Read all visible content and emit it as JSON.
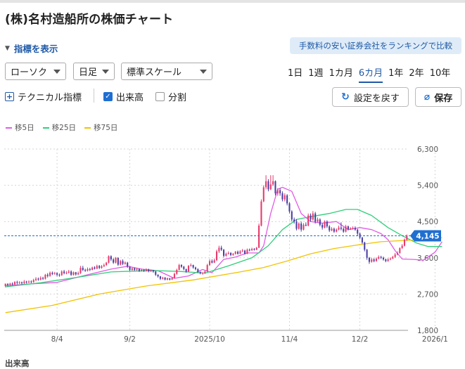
{
  "page": {
    "title": "(株)名村造船所の株価チャート",
    "indicator_toggle": "指標を表示",
    "ranking_link": "手数料の安い証券会社をランキングで比較"
  },
  "controls": {
    "chart_type": "ローソク",
    "interval": "日足",
    "scale": "標準スケール",
    "periods": [
      {
        "label": "1日",
        "active": false
      },
      {
        "label": "1週",
        "active": false
      },
      {
        "label": "1カ月",
        "active": false
      },
      {
        "label": "6カ月",
        "active": true
      },
      {
        "label": "1年",
        "active": false
      },
      {
        "label": "2年",
        "active": false
      },
      {
        "label": "10年",
        "active": false
      }
    ],
    "technical_label": "テクニカル指標",
    "volume_label": "出来高",
    "volume_checked": true,
    "split_label": "分割",
    "split_checked": false,
    "reset_label": "設定を戻す",
    "save_label": "保存"
  },
  "legend": [
    {
      "label": "移5日",
      "color": "#e05ce6"
    },
    {
      "label": "移25日",
      "color": "#2fcf7a"
    },
    {
      "label": "移75日",
      "color": "#f2c200"
    }
  ],
  "volume_title": "出来高",
  "chart_data": {
    "type": "candlestick",
    "ylim": [
      1800,
      6300
    ],
    "y_ticks": [
      {
        "value": 6300,
        "label": "6,300"
      },
      {
        "value": 5400,
        "label": "5,400"
      },
      {
        "value": 4500,
        "label": "4,500"
      },
      {
        "value": 3600,
        "label": "3,600"
      },
      {
        "value": 2700,
        "label": "2,700"
      },
      {
        "value": 1800,
        "label": "1,800"
      }
    ],
    "x_ticks": [
      {
        "index": 22,
        "label": "8/4"
      },
      {
        "index": 53,
        "label": "9/2"
      },
      {
        "index": 87,
        "label": "2025/10"
      },
      {
        "index": 121,
        "label": "11/4"
      },
      {
        "index": 151,
        "label": "12/2"
      },
      {
        "index": 183,
        "label": "2026/1"
      }
    ],
    "current_price": 4145,
    "current_label": "4,145",
    "colors": {
      "up": "#e8396b",
      "down": "#4a3fa3",
      "current": "#1f6fd1"
    },
    "series": [
      {
        "name": "移5日",
        "color": "#e05ce6",
        "points": [
          [
            0,
            2910
          ],
          [
            10,
            2950
          ],
          [
            22,
            2990
          ],
          [
            35,
            3180
          ],
          [
            45,
            3320
          ],
          [
            52,
            3390
          ],
          [
            58,
            3320
          ],
          [
            65,
            3280
          ],
          [
            72,
            3090
          ],
          [
            78,
            3150
          ],
          [
            84,
            3310
          ],
          [
            88,
            3230
          ],
          [
            93,
            3560
          ],
          [
            98,
            3620
          ],
          [
            103,
            3720
          ],
          [
            108,
            3720
          ],
          [
            110,
            3900
          ],
          [
            113,
            4700
          ],
          [
            116,
            5300
          ],
          [
            118,
            5350
          ],
          [
            122,
            5250
          ],
          [
            126,
            4700
          ],
          [
            130,
            4500
          ],
          [
            135,
            4460
          ],
          [
            141,
            4500
          ],
          [
            146,
            4300
          ],
          [
            151,
            4350
          ],
          [
            156,
            4300
          ],
          [
            160,
            4200
          ],
          [
            163,
            4050
          ],
          [
            166,
            3780
          ],
          [
            169,
            3570
          ],
          [
            174,
            3560
          ],
          [
            178,
            3540
          ],
          [
            183,
            3740
          ],
          [
            186,
            4000
          ]
        ]
      },
      {
        "name": "移25日",
        "color": "#2fcf7a",
        "points": [
          [
            0,
            2880
          ],
          [
            15,
            2980
          ],
          [
            30,
            3110
          ],
          [
            45,
            3250
          ],
          [
            55,
            3270
          ],
          [
            65,
            3280
          ],
          [
            75,
            3260
          ],
          [
            85,
            3220
          ],
          [
            95,
            3400
          ],
          [
            105,
            3600
          ],
          [
            112,
            3900
          ],
          [
            118,
            4300
          ],
          [
            124,
            4550
          ],
          [
            130,
            4620
          ],
          [
            138,
            4700
          ],
          [
            145,
            4800
          ],
          [
            150,
            4800
          ],
          [
            156,
            4650
          ],
          [
            163,
            4350
          ],
          [
            169,
            4150
          ],
          [
            175,
            3970
          ],
          [
            180,
            3880
          ],
          [
            186,
            3880
          ]
        ]
      },
      {
        "name": "移75日",
        "color": "#f2c200",
        "points": [
          [
            0,
            2240
          ],
          [
            20,
            2420
          ],
          [
            40,
            2700
          ],
          [
            60,
            2900
          ],
          [
            80,
            3050
          ],
          [
            100,
            3250
          ],
          [
            110,
            3360
          ],
          [
            120,
            3520
          ],
          [
            130,
            3700
          ],
          [
            140,
            3830
          ],
          [
            150,
            3920
          ],
          [
            160,
            4000
          ],
          [
            170,
            4030
          ],
          [
            180,
            4060
          ],
          [
            186,
            4100
          ]
        ]
      }
    ],
    "candles": [
      [
        2900,
        2960,
        2870,
        2950
      ],
      [
        2950,
        2930,
        2890,
        2970
      ],
      [
        2930,
        2960,
        2900,
        2980
      ],
      [
        2960,
        2940,
        2910,
        2990
      ],
      [
        2940,
        3000,
        2920,
        3020
      ],
      [
        3000,
        2980,
        2940,
        3030
      ],
      [
        2980,
        2990,
        2950,
        3020
      ],
      [
        2990,
        2970,
        2940,
        3010
      ],
      [
        2970,
        3010,
        2950,
        3050
      ],
      [
        3010,
        2990,
        2960,
        3030
      ],
      [
        2990,
        3010,
        2970,
        3040
      ],
      [
        3010,
        3000,
        2970,
        3040
      ],
      [
        3000,
        3050,
        2980,
        3080
      ],
      [
        3050,
        3080,
        3020,
        3120
      ],
      [
        3080,
        3060,
        3030,
        3110
      ],
      [
        3060,
        3100,
        3040,
        3140
      ],
      [
        3100,
        3080,
        3050,
        3130
      ],
      [
        3080,
        3180,
        3060,
        3200
      ],
      [
        3180,
        3150,
        3110,
        3220
      ],
      [
        3150,
        3230,
        3130,
        3260
      ],
      [
        3230,
        3200,
        3170,
        3260
      ],
      [
        3200,
        3220,
        3180,
        3250
      ],
      [
        3220,
        3180,
        3140,
        3240
      ],
      [
        3180,
        3170,
        3130,
        3210
      ],
      [
        3170,
        3260,
        3150,
        3290
      ],
      [
        3260,
        3220,
        3190,
        3300
      ],
      [
        3220,
        3230,
        3190,
        3270
      ],
      [
        3230,
        3260,
        3210,
        3300
      ],
      [
        3260,
        3180,
        3150,
        3290
      ],
      [
        3180,
        3240,
        3160,
        3260
      ],
      [
        3240,
        3190,
        3160,
        3250
      ],
      [
        3190,
        3220,
        3170,
        3260
      ],
      [
        3220,
        3350,
        3200,
        3400
      ],
      [
        3350,
        3300,
        3270,
        3400
      ],
      [
        3300,
        3280,
        3250,
        3330
      ],
      [
        3280,
        3320,
        3260,
        3360
      ],
      [
        3320,
        3300,
        3270,
        3350
      ],
      [
        3300,
        3360,
        3290,
        3380
      ],
      [
        3360,
        3330,
        3310,
        3390
      ],
      [
        3330,
        3400,
        3320,
        3430
      ],
      [
        3400,
        3350,
        3320,
        3420
      ],
      [
        3350,
        3390,
        3330,
        3420
      ],
      [
        3390,
        3420,
        3370,
        3460
      ],
      [
        3420,
        3480,
        3400,
        3500
      ],
      [
        3480,
        3640,
        3460,
        3660
      ],
      [
        3640,
        3560,
        3520,
        3660
      ],
      [
        3560,
        3480,
        3450,
        3590
      ],
      [
        3480,
        3600,
        3460,
        3620
      ],
      [
        3600,
        3430,
        3400,
        3610
      ],
      [
        3430,
        3520,
        3410,
        3550
      ],
      [
        3520,
        3450,
        3420,
        3560
      ],
      [
        3450,
        3480,
        3430,
        3510
      ],
      [
        3480,
        3380,
        3350,
        3500
      ],
      [
        3380,
        3300,
        3270,
        3390
      ],
      [
        3300,
        3340,
        3280,
        3360
      ],
      [
        3340,
        3300,
        3270,
        3360
      ],
      [
        3300,
        3320,
        3280,
        3350
      ],
      [
        3320,
        3280,
        3250,
        3340
      ],
      [
        3280,
        3300,
        3260,
        3330
      ],
      [
        3300,
        3280,
        3250,
        3320
      ],
      [
        3280,
        3310,
        3260,
        3340
      ],
      [
        3310,
        3270,
        3240,
        3330
      ],
      [
        3270,
        3290,
        3250,
        3310
      ],
      [
        3290,
        3260,
        3230,
        3300
      ],
      [
        3260,
        3180,
        3150,
        3270
      ],
      [
        3180,
        3140,
        3110,
        3190
      ],
      [
        3140,
        3080,
        3050,
        3150
      ],
      [
        3080,
        3110,
        3060,
        3130
      ],
      [
        3110,
        3060,
        3040,
        3120
      ],
      [
        3060,
        3090,
        3040,
        3110
      ],
      [
        3090,
        3060,
        3040,
        3100
      ],
      [
        3060,
        3100,
        3050,
        3120
      ],
      [
        3100,
        3200,
        3090,
        3230
      ],
      [
        3200,
        3300,
        3180,
        3330
      ],
      [
        3300,
        3420,
        3290,
        3450
      ],
      [
        3420,
        3380,
        3350,
        3440
      ],
      [
        3380,
        3320,
        3290,
        3400
      ],
      [
        3320,
        3260,
        3230,
        3330
      ],
      [
        3260,
        3400,
        3250,
        3420
      ],
      [
        3400,
        3420,
        3380,
        3460
      ],
      [
        3420,
        3360,
        3330,
        3430
      ],
      [
        3360,
        3320,
        3290,
        3380
      ],
      [
        3320,
        3250,
        3220,
        3340
      ],
      [
        3250,
        3220,
        3190,
        3260
      ],
      [
        3220,
        3230,
        3180,
        3240
      ],
      [
        3230,
        3260,
        3200,
        3280
      ],
      [
        3260,
        3420,
        3250,
        3450
      ],
      [
        3420,
        3520,
        3400,
        3560
      ],
      [
        3520,
        3480,
        3460,
        3560
      ],
      [
        3480,
        3540,
        3470,
        3580
      ],
      [
        3540,
        3760,
        3520,
        3800
      ],
      [
        3760,
        3850,
        3720,
        3900
      ],
      [
        3850,
        3800,
        3770,
        3900
      ],
      [
        3800,
        3650,
        3610,
        3820
      ],
      [
        3650,
        3700,
        3630,
        3730
      ],
      [
        3700,
        3720,
        3680,
        3760
      ],
      [
        3720,
        3670,
        3640,
        3740
      ],
      [
        3670,
        3700,
        3650,
        3720
      ],
      [
        3700,
        3750,
        3680,
        3770
      ],
      [
        3750,
        3700,
        3680,
        3780
      ],
      [
        3700,
        3760,
        3690,
        3790
      ],
      [
        3760,
        3780,
        3740,
        3820
      ],
      [
        3780,
        3700,
        3680,
        3800
      ],
      [
        3700,
        3800,
        3690,
        3830
      ],
      [
        3800,
        3790,
        3760,
        3830
      ],
      [
        3790,
        3820,
        3770,
        3850
      ],
      [
        3820,
        3800,
        3780,
        3840
      ],
      [
        3800,
        3850,
        3790,
        3870
      ],
      [
        3850,
        4400,
        3840,
        4450
      ],
      [
        4400,
        5000,
        4380,
        5050
      ],
      [
        5000,
        5350,
        4980,
        5400
      ],
      [
        5350,
        5500,
        5300,
        5650
      ],
      [
        5500,
        5300,
        5250,
        5550
      ],
      [
        5300,
        5420,
        5280,
        5650
      ],
      [
        5420,
        5500,
        5380,
        5650
      ],
      [
        5500,
        5200,
        5150,
        5520
      ],
      [
        5200,
        5280,
        5140,
        5330
      ],
      [
        5280,
        5200,
        5140,
        5330
      ],
      [
        5200,
        5050,
        5000,
        5250
      ],
      [
        5050,
        5150,
        5000,
        5200
      ],
      [
        5150,
        4950,
        4900,
        5180
      ],
      [
        4950,
        4750,
        4700,
        4980
      ],
      [
        4750,
        4550,
        4500,
        4780
      ],
      [
        4550,
        4500,
        4450,
        4600
      ],
      [
        4500,
        4320,
        4280,
        4560
      ],
      [
        4320,
        4450,
        4300,
        4480
      ],
      [
        4450,
        4300,
        4250,
        4500
      ],
      [
        4300,
        4420,
        4280,
        4460
      ],
      [
        4420,
        4400,
        4380,
        4480
      ],
      [
        4400,
        4650,
        4380,
        4700
      ],
      [
        4650,
        4550,
        4500,
        4700
      ],
      [
        4550,
        4700,
        4520,
        4760
      ],
      [
        4700,
        4500,
        4450,
        4740
      ],
      [
        4500,
        4550,
        4470,
        4600
      ],
      [
        4550,
        4420,
        4380,
        4580
      ],
      [
        4420,
        4350,
        4300,
        4460
      ],
      [
        4350,
        4500,
        4330,
        4530
      ],
      [
        4500,
        4380,
        4340,
        4530
      ],
      [
        4380,
        4280,
        4240,
        4410
      ],
      [
        4280,
        4320,
        4260,
        4360
      ],
      [
        4320,
        4250,
        4220,
        4350
      ],
      [
        4250,
        4300,
        4230,
        4330
      ],
      [
        4300,
        4350,
        4280,
        4400
      ],
      [
        4350,
        4320,
        4280,
        4480
      ],
      [
        4320,
        4250,
        4220,
        4360
      ],
      [
        4250,
        4380,
        4230,
        4420
      ],
      [
        4380,
        4310,
        4280,
        4400
      ],
      [
        4310,
        4330,
        4290,
        4360
      ],
      [
        4330,
        4340,
        4300,
        4380
      ],
      [
        4340,
        4300,
        4270,
        4380
      ],
      [
        4300,
        4200,
        4150,
        4320
      ],
      [
        4200,
        4100,
        4060,
        4230
      ],
      [
        4100,
        3980,
        3940,
        4120
      ],
      [
        3980,
        3800,
        3760,
        4000
      ],
      [
        3800,
        3600,
        3550,
        3820
      ],
      [
        3600,
        3500,
        3450,
        3620
      ],
      [
        3500,
        3560,
        3480,
        3600
      ],
      [
        3560,
        3520,
        3490,
        3590
      ],
      [
        3520,
        3580,
        3500,
        3610
      ],
      [
        3580,
        3620,
        3560,
        3660
      ],
      [
        3620,
        3600,
        3570,
        3650
      ],
      [
        3600,
        3560,
        3530,
        3630
      ],
      [
        3560,
        3520,
        3490,
        3580
      ],
      [
        3520,
        3560,
        3500,
        3590
      ],
      [
        3560,
        3580,
        3540,
        3610
      ],
      [
        3580,
        3620,
        3570,
        3650
      ],
      [
        3620,
        3680,
        3600,
        3720
      ],
      [
        3680,
        3720,
        3660,
        3760
      ],
      [
        3720,
        3840,
        3700,
        3860
      ],
      [
        3840,
        3900,
        3820,
        3940
      ],
      [
        3900,
        4050,
        3880,
        4080
      ],
      [
        4050,
        4145,
        4020,
        4180
      ]
    ]
  }
}
